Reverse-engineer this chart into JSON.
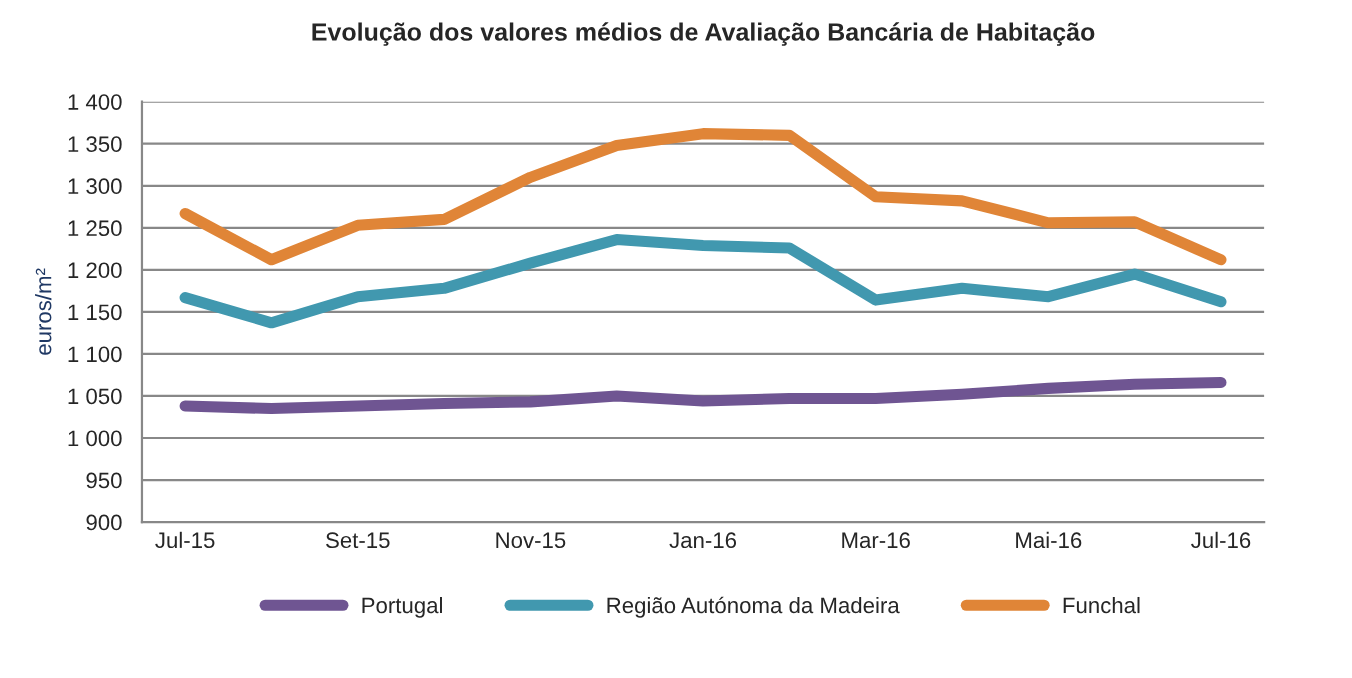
{
  "chart_data": {
    "type": "line",
    "title": "Evolução dos valores médios de Avaliação Bancária de Habitação",
    "ylabel": "euros/m²",
    "categories": [
      "Jul-15",
      null,
      "Set-15",
      null,
      "Nov-15",
      null,
      "Jan-16",
      null,
      "Mar-16",
      null,
      "Mai-16",
      null,
      "Jul-16"
    ],
    "series": [
      {
        "name": "Portugal",
        "color": "#6f5592",
        "values": [
          1038,
          1035,
          1038,
          1041,
          1043,
          1050,
          1044,
          1047,
          1047,
          1052,
          1059,
          1064,
          1066
        ]
      },
      {
        "name": "Região Autónoma da Madeira",
        "color": "#4198af",
        "values": [
          1167,
          1137,
          1168,
          1178,
          1208,
          1236,
          1229,
          1226,
          1164,
          1178,
          1168,
          1195,
          1162
        ]
      },
      {
        "name": "Funchal",
        "color": "#e08537",
        "values": [
          1267,
          1212,
          1253,
          1260,
          1310,
          1348,
          1362,
          1360,
          1287,
          1282,
          1256,
          1257,
          1212
        ]
      }
    ],
    "ylim": [
      900,
      1400
    ],
    "yticks": [
      {
        "value": 900,
        "label": "900"
      },
      {
        "value": 950,
        "label": "950"
      },
      {
        "value": 1000,
        "label": "1 000"
      },
      {
        "value": 1050,
        "label": "1 050"
      },
      {
        "value": 1100,
        "label": "1 100"
      },
      {
        "value": 1150,
        "label": "1 150"
      },
      {
        "value": 1200,
        "label": "1 200"
      },
      {
        "value": 1250,
        "label": "1 250"
      },
      {
        "value": 1300,
        "label": "1 300"
      },
      {
        "value": 1350,
        "label": "1 350"
      },
      {
        "value": 1400,
        "label": "1 400"
      }
    ],
    "grid": "y",
    "legend": "bottom",
    "marker": "none",
    "line_style": "solid"
  }
}
